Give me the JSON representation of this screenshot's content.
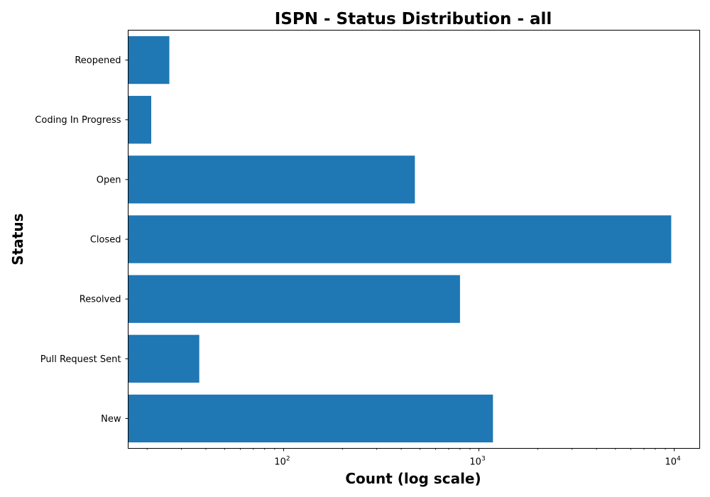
{
  "chart_data": {
    "type": "bar",
    "orientation": "horizontal",
    "title": "ISPN - Status Distribution - all",
    "xlabel": "Count (log scale)",
    "ylabel": "Status",
    "xscale": "log",
    "xlim": [
      16,
      13500
    ],
    "categories": [
      "New",
      "Pull Request Sent",
      "Resolved",
      "Closed",
      "Open",
      "Coding In Progress",
      "Reopened"
    ],
    "values": [
      1180,
      37,
      800,
      9650,
      470,
      21,
      26
    ],
    "x_ticks": [
      {
        "base": "10",
        "exp": "2",
        "value": 100
      },
      {
        "base": "10",
        "exp": "3",
        "value": 1000
      },
      {
        "base": "10",
        "exp": "4",
        "value": 10000
      }
    ],
    "bar_color": "#1f77b4",
    "grid": false,
    "legend": "none"
  }
}
